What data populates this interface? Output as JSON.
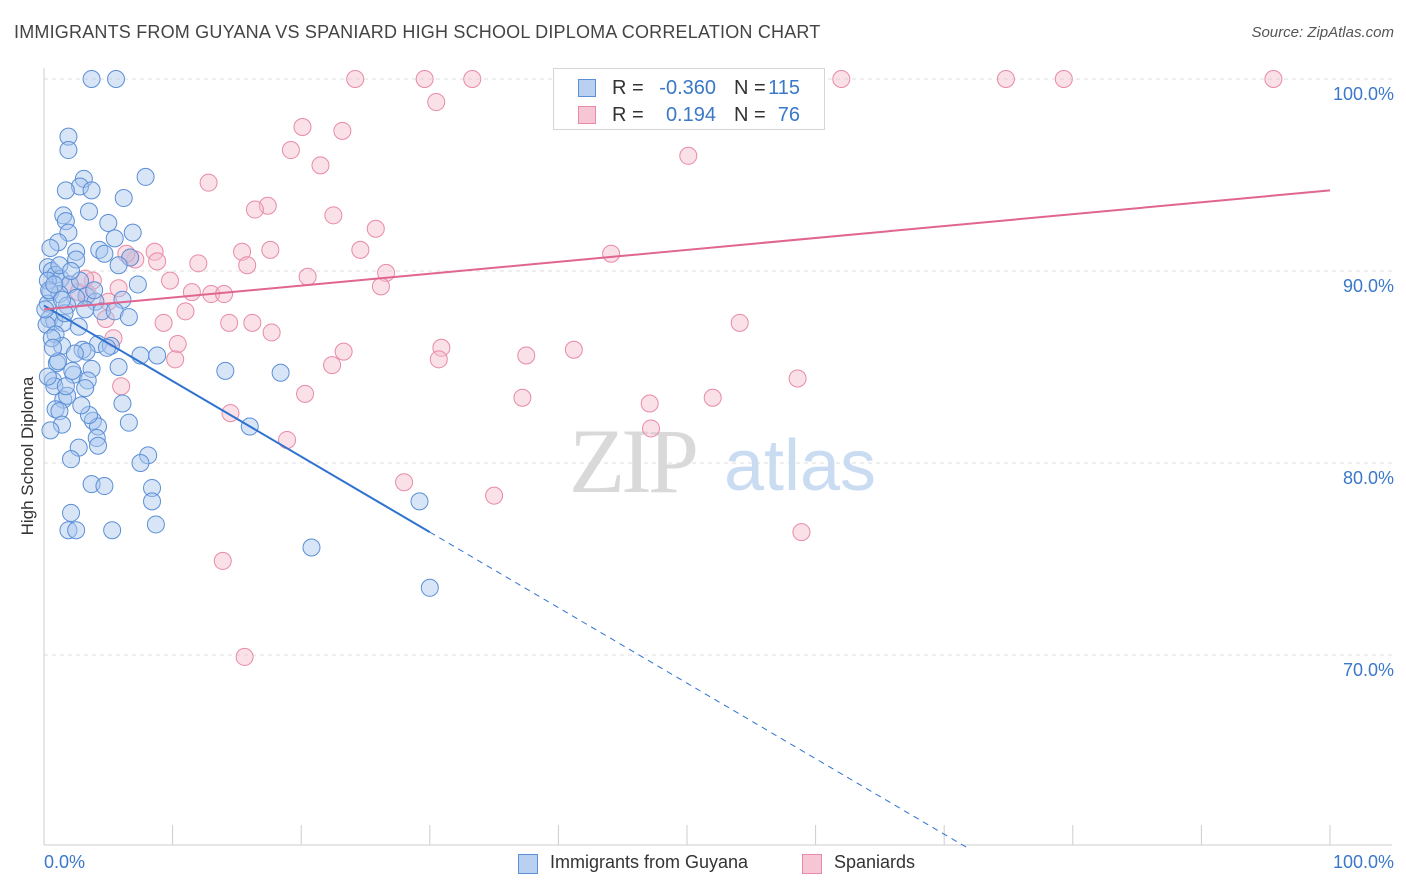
{
  "title": "IMMIGRANTS FROM GUYANA VS SPANIARD HIGH SCHOOL DIPLOMA CORRELATION CHART",
  "source": "Source: ZipAtlas.com",
  "watermark": {
    "zip": "ZIP",
    "atlas": "atlas"
  },
  "colors": {
    "blue": "#5b8fd6",
    "pink": "#e88aa8",
    "blue_line": "#2f72d0",
    "pink_line": "#e0658f",
    "tick_label": "#3a78c8"
  },
  "legend": {
    "rows": [
      {
        "r_label": "R =",
        "r_value": "-0.360",
        "n_label": "N =",
        "n_value": "115"
      },
      {
        "r_label": "R =",
        "r_value": "0.194",
        "n_label": "N =",
        "n_value": "76"
      }
    ]
  },
  "chart_data": {
    "type": "scatter",
    "title": "IMMIGRANTS FROM GUYANA VS SPANIARD HIGH SCHOOL DIPLOMA CORRELATION CHART",
    "xlabel": "",
    "ylabel": "High School Diploma",
    "x_tick_labels": [
      "0.0%",
      "100.0%"
    ],
    "y_tick_labels": [
      "100.0%",
      "90.0%",
      "80.0%",
      "70.0%"
    ],
    "y_ticks": [
      100,
      90,
      80,
      70
    ],
    "xlim": [
      0,
      105
    ],
    "ylim": [
      59.5,
      101.5
    ],
    "grid": true,
    "legend_position": "bottom",
    "series": [
      {
        "name": "Immigrants from Guyana",
        "color": "#5b8fd6",
        "trend": {
          "x0": 0,
          "y0": 88.2,
          "x1": 30,
          "y1": 76.4,
          "dashed_to_x": 72
        },
        "points": [
          [
            3.7,
            100
          ],
          [
            5.6,
            100
          ],
          [
            1.9,
            97
          ],
          [
            1.9,
            96.3
          ],
          [
            7.9,
            94.9
          ],
          [
            3.1,
            94.8
          ],
          [
            2.8,
            94.4
          ],
          [
            3.7,
            94.2
          ],
          [
            1.7,
            94.2
          ],
          [
            6.2,
            93.8
          ],
          [
            3.5,
            93.1
          ],
          [
            1.5,
            92.9
          ],
          [
            1.7,
            92.6
          ],
          [
            5.0,
            92.5
          ],
          [
            1.9,
            92.0
          ],
          [
            1.1,
            91.5
          ],
          [
            5.5,
            91.7
          ],
          [
            4.3,
            91.1
          ],
          [
            2.5,
            91.0
          ],
          [
            4.7,
            90.9
          ],
          [
            2.5,
            90.6
          ],
          [
            6.7,
            90.7
          ],
          [
            0.3,
            90.2
          ],
          [
            0.6,
            90.0
          ],
          [
            0.9,
            89.8
          ],
          [
            1.3,
            89.6
          ],
          [
            0.3,
            89.5
          ],
          [
            2.0,
            89.3
          ],
          [
            7.3,
            89.3
          ],
          [
            0.5,
            88.9
          ],
          [
            1.2,
            88.8
          ],
          [
            3.3,
            88.7
          ],
          [
            2.5,
            88.6
          ],
          [
            6.1,
            88.5
          ],
          [
            4.0,
            88.4
          ],
          [
            0.3,
            88.3
          ],
          [
            1.8,
            88.2
          ],
          [
            3.2,
            88.0
          ],
          [
            4.5,
            87.9
          ],
          [
            5.5,
            87.9
          ],
          [
            6.6,
            87.6
          ],
          [
            0.4,
            87.5
          ],
          [
            0.8,
            87.4
          ],
          [
            1.5,
            87.3
          ],
          [
            0.2,
            87.2
          ],
          [
            2.7,
            87.1
          ],
          [
            0.9,
            86.7
          ],
          [
            4.2,
            86.2
          ],
          [
            1.4,
            86.1
          ],
          [
            5.2,
            86.1
          ],
          [
            3.0,
            85.9
          ],
          [
            3.3,
            85.8
          ],
          [
            2.4,
            85.7
          ],
          [
            7.5,
            85.6
          ],
          [
            8.8,
            85.6
          ],
          [
            1.0,
            85.2
          ],
          [
            3.7,
            84.9
          ],
          [
            5.8,
            85.0
          ],
          [
            14.1,
            84.8
          ],
          [
            18.4,
            84.7
          ],
          [
            2.3,
            84.6
          ],
          [
            0.7,
            84.3
          ],
          [
            3.4,
            84.3
          ],
          [
            0.8,
            84.0
          ],
          [
            3.2,
            83.9
          ],
          [
            1.5,
            83.3
          ],
          [
            0.9,
            82.8
          ],
          [
            6.1,
            83.1
          ],
          [
            1.2,
            82.7
          ],
          [
            3.8,
            82.2
          ],
          [
            6.6,
            82.1
          ],
          [
            1.4,
            82.0
          ],
          [
            4.2,
            81.9
          ],
          [
            16.0,
            81.9
          ],
          [
            0.5,
            81.7
          ],
          [
            4.1,
            81.3
          ],
          [
            4.2,
            80.9
          ],
          [
            2.7,
            80.8
          ],
          [
            8.1,
            80.4
          ],
          [
            2.1,
            80.2
          ],
          [
            7.5,
            80.0
          ],
          [
            3.7,
            78.9
          ],
          [
            4.7,
            78.8
          ],
          [
            8.4,
            78.7
          ],
          [
            8.4,
            78.0
          ],
          [
            29.2,
            78.0
          ],
          [
            2.1,
            77.4
          ],
          [
            8.7,
            76.8
          ],
          [
            1.9,
            76.5
          ],
          [
            2.5,
            76.5
          ],
          [
            5.3,
            76.5
          ],
          [
            20.8,
            75.6
          ],
          [
            30.0,
            73.5
          ],
          [
            1.2,
            90.3
          ],
          [
            0.4,
            89.0
          ],
          [
            2.8,
            89.5
          ],
          [
            0.1,
            88.0
          ],
          [
            1.6,
            87.8
          ],
          [
            0.6,
            86.5
          ],
          [
            1.1,
            85.3
          ],
          [
            2.2,
            84.8
          ],
          [
            0.3,
            84.5
          ],
          [
            1.8,
            83.5
          ],
          [
            3.5,
            82.5
          ],
          [
            4.9,
            86.0
          ],
          [
            0.8,
            89.3
          ],
          [
            1.4,
            88.5
          ],
          [
            2.1,
            90.0
          ],
          [
            0.5,
            91.2
          ],
          [
            3.9,
            89.0
          ],
          [
            5.8,
            90.3
          ],
          [
            6.9,
            92.0
          ],
          [
            0.7,
            86.0
          ],
          [
            1.7,
            84.0
          ],
          [
            2.9,
            83.0
          ]
        ]
      },
      {
        "name": "Spaniards",
        "color": "#e88aa8",
        "trend": {
          "x0": 0,
          "y0": 88.0,
          "x1": 100,
          "y1": 94.2
        },
        "points": [
          [
            24.2,
            100
          ],
          [
            29.6,
            100
          ],
          [
            33.3,
            100
          ],
          [
            41.0,
            100
          ],
          [
            50.3,
            100
          ],
          [
            60.0,
            100
          ],
          [
            62.0,
            100
          ],
          [
            74.8,
            100
          ],
          [
            79.3,
            100
          ],
          [
            95.6,
            100
          ],
          [
            30.5,
            98.8
          ],
          [
            20.1,
            97.5
          ],
          [
            23.2,
            97.3
          ],
          [
            19.2,
            96.3
          ],
          [
            21.5,
            95.5
          ],
          [
            50.1,
            96.0
          ],
          [
            12.8,
            94.6
          ],
          [
            17.4,
            93.4
          ],
          [
            16.4,
            93.2
          ],
          [
            22.5,
            92.9
          ],
          [
            25.8,
            92.2
          ],
          [
            8.6,
            91.0
          ],
          [
            15.4,
            91.0
          ],
          [
            17.6,
            91.1
          ],
          [
            24.6,
            91.1
          ],
          [
            44.1,
            90.9
          ],
          [
            7.1,
            90.6
          ],
          [
            6.7,
            90.7
          ],
          [
            12.0,
            90.4
          ],
          [
            15.8,
            90.3
          ],
          [
            26.6,
            89.9
          ],
          [
            20.5,
            89.7
          ],
          [
            3.8,
            89.5
          ],
          [
            9.8,
            89.5
          ],
          [
            2.0,
            89.3
          ],
          [
            5.8,
            89.1
          ],
          [
            3.4,
            88.8
          ],
          [
            11.5,
            88.9
          ],
          [
            13.0,
            88.8
          ],
          [
            14.0,
            88.8
          ],
          [
            11.0,
            87.9
          ],
          [
            4.8,
            87.5
          ],
          [
            9.3,
            87.3
          ],
          [
            14.4,
            87.3
          ],
          [
            16.2,
            87.3
          ],
          [
            17.7,
            86.8
          ],
          [
            54.1,
            87.3
          ],
          [
            5.4,
            86.5
          ],
          [
            10.4,
            86.2
          ],
          [
            30.9,
            86.0
          ],
          [
            41.2,
            85.9
          ],
          [
            23.3,
            85.8
          ],
          [
            30.7,
            85.4
          ],
          [
            10.2,
            85.4
          ],
          [
            22.4,
            85.1
          ],
          [
            6.0,
            84.0
          ],
          [
            58.6,
            84.4
          ],
          [
            20.3,
            83.6
          ],
          [
            37.2,
            83.4
          ],
          [
            47.1,
            83.1
          ],
          [
            52.0,
            83.4
          ],
          [
            14.5,
            82.6
          ],
          [
            47.2,
            81.8
          ],
          [
            18.9,
            81.2
          ],
          [
            28.0,
            79.0
          ],
          [
            35.0,
            78.3
          ],
          [
            58.9,
            76.4
          ],
          [
            13.9,
            74.9
          ],
          [
            15.6,
            69.9
          ],
          [
            6.4,
            90.9
          ],
          [
            5.0,
            88.4
          ],
          [
            2.7,
            88.9
          ],
          [
            8.8,
            90.5
          ],
          [
            3.2,
            89.6
          ],
          [
            26.2,
            89.2
          ],
          [
            37.5,
            85.6
          ]
        ]
      }
    ]
  },
  "bottom_legend": {
    "series1": "Immigrants from Guyana",
    "series2": "Spaniards"
  },
  "ylabel": "High School Diploma"
}
